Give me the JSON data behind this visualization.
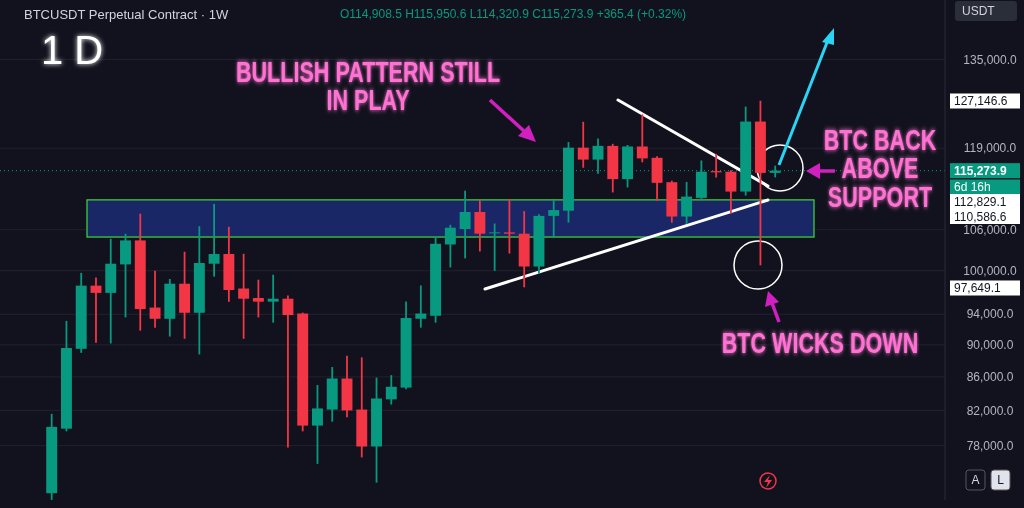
{
  "chart_data": {
    "type": "candlestick",
    "title": "BTCUSDT Perpetual Contract · 1W",
    "categories": [
      null,
      null,
      null,
      null,
      null,
      null,
      null,
      null,
      null,
      null,
      null,
      null,
      null,
      null,
      null,
      null,
      null,
      null,
      null,
      null,
      null,
      null,
      null,
      null,
      null,
      null,
      null,
      null,
      null,
      null,
      null,
      null,
      null,
      null,
      null,
      null,
      null,
      null,
      null,
      null,
      null,
      null,
      null,
      null,
      null,
      null,
      null,
      null,
      null,
      null,
      null,
      null,
      null,
      null,
      null,
      null,
      null,
      null,
      null,
      null,
      null,
      null,
      null,
      null
    ],
    "ohlc": [
      null,
      null,
      null,
      [
        72900,
        81500,
        72300,
        80100
      ],
      [
        79900,
        93000,
        79700,
        89600
      ],
      [
        89500,
        99570,
        89100,
        97900
      ],
      [
        97900,
        98900,
        90400,
        96900
      ],
      [
        96900,
        104500,
        90300,
        101000
      ],
      [
        100900,
        105250,
        93700,
        104400
      ],
      [
        104400,
        108300,
        91950,
        94700
      ],
      [
        94900,
        99860,
        92350,
        93400
      ],
      [
        93400,
        98700,
        91190,
        98170
      ],
      [
        98170,
        102600,
        90900,
        94200
      ],
      [
        94200,
        106400,
        88900,
        101100
      ],
      [
        101000,
        109800,
        99300,
        102400
      ],
      [
        102400,
        106300,
        95800,
        97300
      ],
      [
        97500,
        102300,
        90900,
        96100
      ],
      [
        96200,
        98600,
        93700,
        95700
      ],
      [
        95700,
        99300,
        93000,
        96100
      ],
      [
        96100,
        96400,
        77900,
        93900
      ],
      [
        94100,
        94100,
        79700,
        80250
      ],
      [
        80250,
        84900,
        76100,
        82230
      ],
      [
        82100,
        87100,
        80800,
        85800
      ],
      [
        85800,
        88500,
        81300,
        82000
      ],
      [
        82100,
        88300,
        76800,
        77900
      ],
      [
        77900,
        85800,
        74100,
        83400
      ],
      [
        83300,
        86100,
        82800,
        84800
      ],
      [
        84700,
        95600,
        84600,
        93500
      ],
      [
        93400,
        97800,
        92350,
        94100
      ],
      [
        93800,
        104800,
        93000,
        103900
      ],
      [
        103800,
        106600,
        100600,
        106300
      ],
      [
        106100,
        111900,
        101900,
        108700
      ],
      [
        108700,
        110400,
        102900,
        105400
      ],
      [
        105500,
        106800,
        100100,
        105600
      ],
      [
        105600,
        110600,
        102600,
        105400
      ],
      [
        105400,
        108700,
        97800,
        100600
      ],
      [
        100600,
        108200,
        99700,
        108100
      ],
      [
        108100,
        110400,
        104900,
        109000
      ],
      [
        108900,
        119900,
        107200,
        119100
      ],
      [
        119100,
        123400,
        115900,
        117100
      ],
      [
        117100,
        120500,
        114900,
        119400
      ],
      [
        119400,
        119600,
        111900,
        113900
      ],
      [
        113900,
        119400,
        112700,
        119300
      ],
      [
        119300,
        124700,
        116800,
        117300
      ],
      [
        117400,
        117500,
        110600,
        113300
      ],
      [
        113400,
        113500,
        107200,
        108000
      ],
      [
        108000,
        113300,
        107000,
        111100
      ],
      [
        110900,
        116800,
        110600,
        115100
      ],
      [
        115200,
        117900,
        114300,
        115000
      ],
      [
        115100,
        115200,
        108600,
        111900
      ],
      [
        111900,
        126100,
        111400,
        123600
      ],
      [
        123600,
        127146.6,
        100900,
        114908.5
      ],
      [
        114908.5,
        115950.6,
        114320.9,
        115273.9
      ],
      null,
      null,
      null,
      null,
      null,
      null,
      null,
      null,
      null,
      null,
      null
    ],
    "colors": [
      null,
      null,
      null,
      "#089981",
      "#089981",
      "#089981",
      "#f23645",
      "#089981",
      "#089981",
      "#f23645",
      "#f23645",
      "#089981",
      "#f23645",
      "#089981",
      "#089981",
      "#f23645",
      "#f23645",
      "#f23645",
      "#089981",
      "#f23645",
      "#f23645",
      "#089981",
      "#089981",
      "#f23645",
      "#f23645",
      "#089981",
      "#089981",
      "#089981",
      "#089981",
      "#089981",
      "#089981",
      "#089981",
      "#f23645",
      "#089981",
      "#f23645",
      "#f23645",
      "#089981",
      "#089981",
      "#089981",
      "#f23645",
      "#089981",
      "#f23645",
      "#089981",
      "#f23645",
      "#f23645",
      "#f23645",
      "#089981",
      "#089981",
      "#f23645",
      "#f23645",
      "#089981",
      "#f23645",
      "#089981",
      null,
      null,
      null,
      null,
      null,
      null,
      null,
      null,
      null,
      null,
      null
    ],
    "log": true,
    "ylim": [
      72200,
      146900
    ],
    "yticks": [
      {
        "value": 78000,
        "label": "78,000.0"
      },
      {
        "value": 82000,
        "label": "82,000.0"
      },
      {
        "value": 86000,
        "label": "86,000.0"
      },
      {
        "value": 90000,
        "label": "90,000.0"
      },
      {
        "value": 94000,
        "label": "94,000.0"
      },
      {
        "value": 100000,
        "label": "100,000.0"
      },
      {
        "value": 106000,
        "label": "106,000.0"
      },
      {
        "value": 119000,
        "label": "119,000.0"
      },
      {
        "value": 135000,
        "label": "135,000.0"
      }
    ],
    "grid": "y",
    "bands": [
      {
        "axis": "y",
        "from": 104900,
        "to": 110586.6,
        "color": "#1a2766"
      }
    ],
    "ref_lines": [
      {
        "axis": "y",
        "value": 115273.9,
        "label": "115,273.9",
        "line_style": "dotted",
        "color": "#089981"
      }
    ],
    "annotations": [
      "O114,908.5 H115,950.6 L114,320.9 C115,273.9 +365.4 (+0.32%)",
      "1 D",
      "BULLISH PATTERN STILL IN PLAY",
      "BTC BACK ABOVE SUPPORT",
      "BTC WICKS DOWN",
      "6d 16h",
      "USDT",
      "A",
      "L",
      "127,146.6",
      "112,829.1",
      "110,586.6",
      "97,649.1"
    ]
  }
}
